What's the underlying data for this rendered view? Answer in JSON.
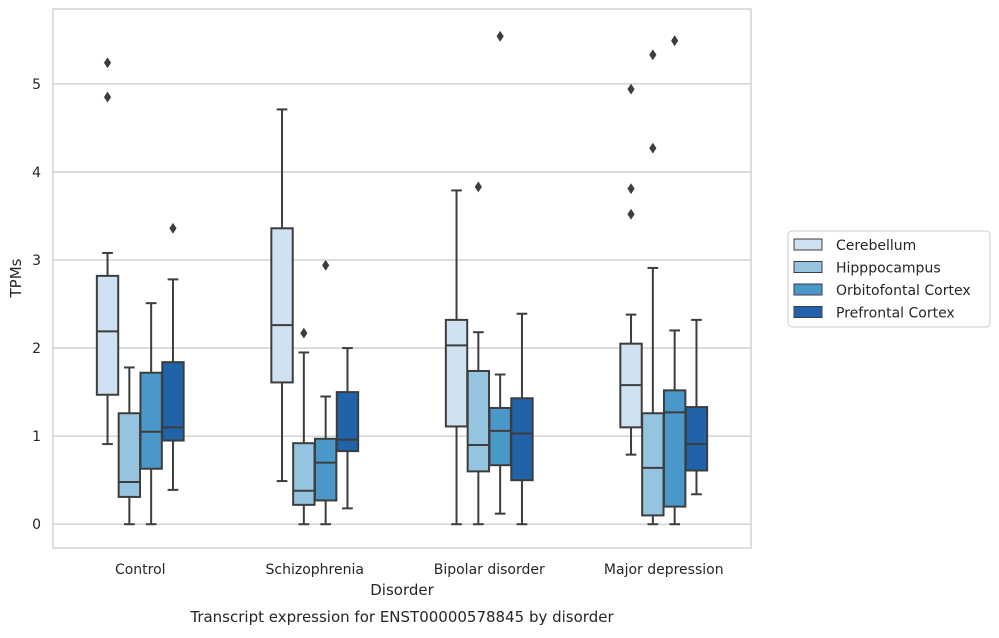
{
  "chart_data": {
    "type": "box",
    "title": "Transcript expression for ENST00000578845 by disorder",
    "xlabel": "Disorder",
    "ylabel": "TPMs",
    "ylim": [
      -0.27,
      5.85
    ],
    "yticks": [
      0,
      1,
      2,
      3,
      4,
      5
    ],
    "grid": "horizontal",
    "legend_position": "right",
    "categories": [
      "Control",
      "Schizophrenia",
      "Bipolar disorder",
      "Major depression"
    ],
    "series": [
      {
        "name": "Cerebellum",
        "color": "#d0e1f2",
        "boxes": [
          {
            "whisker_low": 0.91,
            "q1": 1.47,
            "median": 2.19,
            "q3": 2.82,
            "whisker_high": 3.08,
            "outliers": [
              4.85,
              5.24
            ]
          },
          {
            "whisker_low": 0.49,
            "q1": 1.61,
            "median": 2.26,
            "q3": 3.36,
            "whisker_high": 4.71,
            "outliers": []
          },
          {
            "whisker_low": 0.0,
            "q1": 1.11,
            "median": 2.03,
            "q3": 2.32,
            "whisker_high": 3.79,
            "outliers": []
          },
          {
            "whisker_low": 0.79,
            "q1": 1.1,
            "median": 1.58,
            "q3": 2.05,
            "whisker_high": 2.38,
            "outliers": [
              3.52,
              3.81,
              4.94
            ]
          }
        ]
      },
      {
        "name": "Hipppocampus",
        "color": "#94c4df",
        "boxes": [
          {
            "whisker_low": 0.0,
            "q1": 0.31,
            "median": 0.48,
            "q3": 1.26,
            "whisker_high": 1.78,
            "outliers": []
          },
          {
            "whisker_low": 0.0,
            "q1": 0.22,
            "median": 0.38,
            "q3": 0.92,
            "whisker_high": 1.95,
            "outliers": [
              2.17
            ]
          },
          {
            "whisker_low": 0.0,
            "q1": 0.6,
            "median": 0.9,
            "q3": 1.74,
            "whisker_high": 2.18,
            "outliers": [
              3.83
            ]
          },
          {
            "whisker_low": 0.0,
            "q1": 0.1,
            "median": 0.64,
            "q3": 1.26,
            "whisker_high": 2.91,
            "outliers": [
              4.27,
              5.33
            ]
          }
        ]
      },
      {
        "name": "Orbitofontal Cortex",
        "color": "#4a98c9",
        "boxes": [
          {
            "whisker_low": 0.0,
            "q1": 0.63,
            "median": 1.05,
            "q3": 1.72,
            "whisker_high": 2.51,
            "outliers": []
          },
          {
            "whisker_low": 0.0,
            "q1": 0.27,
            "median": 0.7,
            "q3": 0.97,
            "whisker_high": 1.45,
            "outliers": [
              2.94
            ]
          },
          {
            "whisker_low": 0.12,
            "q1": 0.67,
            "median": 1.06,
            "q3": 1.32,
            "whisker_high": 1.7,
            "outliers": [
              5.54
            ]
          },
          {
            "whisker_low": 0.0,
            "q1": 0.2,
            "median": 1.27,
            "q3": 1.52,
            "whisker_high": 2.2,
            "outliers": [
              5.49
            ]
          }
        ]
      },
      {
        "name": "Prefrontal Cortex",
        "color": "#2163a9",
        "boxes": [
          {
            "whisker_low": 0.39,
            "q1": 0.95,
            "median": 1.1,
            "q3": 1.84,
            "whisker_high": 2.78,
            "outliers": [
              3.36
            ]
          },
          {
            "whisker_low": 0.18,
            "q1": 0.83,
            "median": 0.96,
            "q3": 1.5,
            "whisker_high": 2.0,
            "outliers": []
          },
          {
            "whisker_low": 0.0,
            "q1": 0.5,
            "median": 1.03,
            "q3": 1.43,
            "whisker_high": 2.39,
            "outliers": []
          },
          {
            "whisker_low": 0.34,
            "q1": 0.61,
            "median": 0.91,
            "q3": 1.33,
            "whisker_high": 2.32,
            "outliers": []
          }
        ]
      }
    ]
  }
}
